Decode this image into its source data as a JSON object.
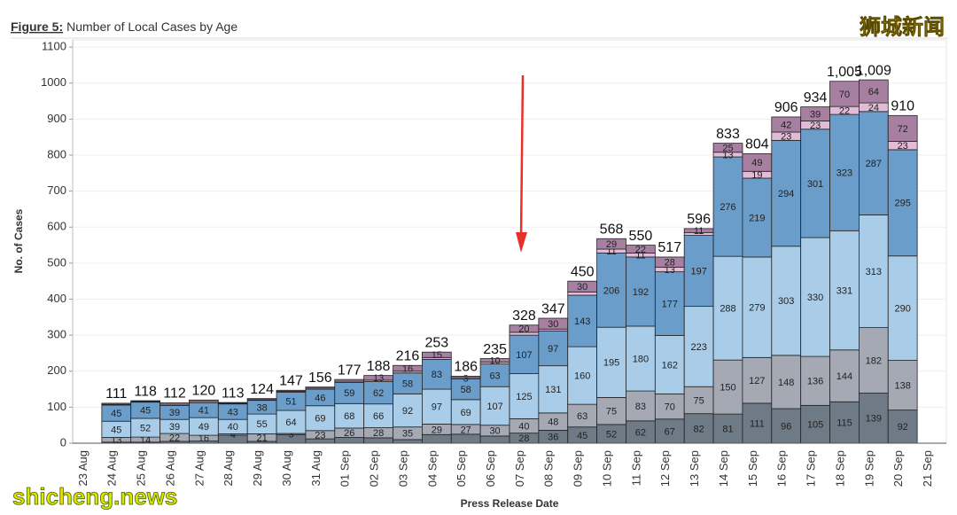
{
  "chart_data": {
    "type": "stacked_bar",
    "title_prefix": "Figure 5:",
    "title": "Number of Local Cases by Age",
    "y_label": "No. of Cases",
    "x_label": "Press Release Date",
    "watermark_top": "狮城新闻",
    "watermark_bottom": "shicheng.news",
    "categories": [
      "23 Aug",
      "24 Aug",
      "25 Aug",
      "26 Aug",
      "27 Aug",
      "28 Aug",
      "29 Aug",
      "30 Aug",
      "31 Aug",
      "01 Sep",
      "02 Sep",
      "03 Sep",
      "04 Sep",
      "05 Sep",
      "06 Sep",
      "07 Sep",
      "08 Sep",
      "09 Sep",
      "10 Sep",
      "11 Sep",
      "12 Sep",
      "13 Sep",
      "14 Sep",
      "15 Sep",
      "16 Sep",
      "17 Sep",
      "18 Sep",
      "19 Sep",
      "20 Sep",
      "21 Sep"
    ],
    "ylim": [
      0,
      1120
    ],
    "yticks": [
      0,
      100,
      200,
      300,
      400,
      500,
      600,
      700,
      800,
      900,
      1000,
      1100
    ],
    "grid": true,
    "series": [
      {
        "color": "#6f7a87",
        "values": [
          null,
          3,
          3,
          5,
          6,
          22,
          5,
          24,
          12,
          16,
          15,
          10,
          24,
          25,
          20,
          28,
          36,
          45,
          52,
          62,
          67,
          82,
          81,
          111,
          96,
          105,
          115,
          139,
          92,
          null
        ],
        "value_labels": [
          null,
          null,
          null,
          null,
          null,
          null,
          null,
          null,
          null,
          null,
          null,
          null,
          null,
          null,
          null,
          "28",
          "36",
          "45",
          "52",
          "62",
          "67",
          "82",
          "81",
          "111",
          "96",
          "105",
          "115",
          "139",
          "92",
          null
        ]
      },
      {
        "color": "#a4a9b4",
        "values": [
          null,
          13,
          14,
          22,
          16,
          4,
          21,
          3,
          23,
          26,
          28,
          35,
          29,
          27,
          30,
          40,
          48,
          63,
          75,
          83,
          70,
          75,
          150,
          127,
          148,
          136,
          144,
          182,
          138,
          null
        ],
        "value_labels": [
          null,
          "13",
          "14",
          "22",
          "16",
          "4",
          "21",
          "3",
          "23",
          "26",
          "28",
          "35",
          "29",
          "27",
          "30",
          "40",
          "48",
          "63",
          "75",
          "83",
          "70",
          "75",
          "150",
          "127",
          "148",
          "136",
          "144",
          "182",
          "138",
          null
        ]
      },
      {
        "color": "#a9cde9",
        "values": [
          null,
          45,
          52,
          39,
          49,
          40,
          55,
          64,
          69,
          68,
          66,
          92,
          97,
          69,
          107,
          125,
          131,
          160,
          195,
          180,
          162,
          223,
          288,
          279,
          303,
          330,
          331,
          313,
          290,
          null
        ],
        "value_labels": [
          null,
          "45",
          "52",
          "39",
          "49",
          "40",
          "55",
          "64",
          "69",
          "68",
          "66",
          "92",
          "97",
          "69",
          "107",
          "125",
          "131",
          "160",
          "195",
          "180",
          "162",
          "223",
          "288",
          "279",
          "303",
          "330",
          "331",
          "313",
          "290",
          null
        ]
      },
      {
        "color": "#6a9dc9",
        "values": [
          null,
          45,
          45,
          39,
          41,
          43,
          38,
          51,
          46,
          59,
          62,
          58,
          83,
          58,
          63,
          107,
          97,
          143,
          206,
          192,
          177,
          197,
          276,
          219,
          294,
          301,
          323,
          287,
          295,
          null
        ],
        "value_labels": [
          null,
          "45",
          "45",
          "39",
          "41",
          "43",
          "38",
          "51",
          "46",
          "59",
          "62",
          "58",
          "83",
          "58",
          "63",
          "107",
          "97",
          "143",
          "206",
          "192",
          "177",
          "197",
          "276",
          "219",
          "294",
          "301",
          "323",
          "287",
          "295",
          null
        ]
      },
      {
        "color": "#e2bcd6",
        "values": [
          null,
          2,
          2,
          3,
          4,
          2,
          2,
          2,
          3,
          3,
          4,
          5,
          5,
          3,
          5,
          8,
          5,
          9,
          11,
          11,
          13,
          8,
          13,
          19,
          23,
          23,
          22,
          24,
          23,
          null
        ],
        "value_labels": [
          null,
          null,
          null,
          null,
          null,
          null,
          null,
          null,
          null,
          null,
          null,
          null,
          null,
          "3",
          null,
          null,
          null,
          null,
          "11",
          "11",
          "13",
          null,
          "13",
          "19",
          "23",
          "23",
          "22",
          "24",
          "23",
          null
        ]
      },
      {
        "color": "#a67fa1",
        "values": [
          null,
          3,
          2,
          4,
          4,
          2,
          3,
          3,
          3,
          5,
          13,
          16,
          15,
          4,
          10,
          20,
          30,
          30,
          29,
          22,
          28,
          11,
          25,
          49,
          42,
          39,
          70,
          64,
          72,
          null
        ],
        "value_labels": [
          null,
          null,
          null,
          null,
          null,
          null,
          null,
          null,
          null,
          null,
          "13",
          "16",
          "15",
          null,
          "10",
          "20",
          "30",
          "30",
          "29",
          "22",
          "28",
          "11",
          "25",
          "49",
          "42",
          "39",
          "70",
          "64",
          "72",
          null
        ]
      }
    ],
    "totals": {
      "values": [
        null,
        111,
        118,
        112,
        120,
        113,
        124,
        147,
        156,
        177,
        188,
        216,
        253,
        186,
        235,
        328,
        347,
        450,
        568,
        550,
        517,
        596,
        833,
        804,
        906,
        934,
        1005,
        1009,
        910,
        null
      ],
      "value_labels": [
        null,
        "111",
        "118",
        "112",
        "120",
        "113",
        "124",
        "147",
        "156",
        "177",
        "188",
        "216",
        "253",
        "186",
        "235",
        "328",
        "347",
        "450",
        "568",
        "550",
        "517",
        "596",
        "833",
        "804",
        "906",
        "934",
        "1,005",
        "1,009",
        "910",
        null
      ]
    }
  }
}
